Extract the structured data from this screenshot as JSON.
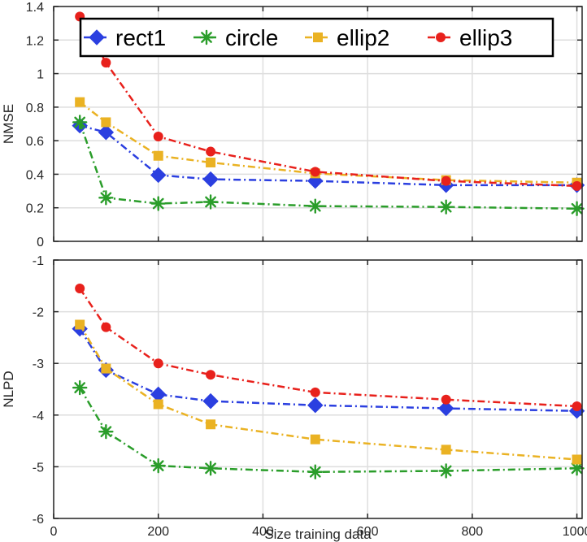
{
  "chart_data": [
    {
      "type": "line",
      "xlabel": "",
      "ylabel": "NMSE",
      "xlim": [
        0,
        1010
      ],
      "ylim": [
        0,
        1.4
      ],
      "xticks": [
        0,
        200,
        400,
        600,
        800,
        1000
      ],
      "yticks": [
        0,
        0.2,
        0.4,
        0.6,
        0.8,
        1,
        1.2,
        1.4
      ],
      "ytick_labels": [
        "0",
        "0.2",
        "0.4",
        "0.6",
        "0.8",
        "1",
        "1.2",
        "1.4"
      ],
      "show_xtick_labels": false,
      "grid": true,
      "legend_position": "top",
      "x": [
        50,
        100,
        200,
        300,
        500,
        750,
        1000
      ],
      "series": [
        {
          "name": "rect1",
          "color": "#2b3fe0",
          "marker": "diamond",
          "values": [
            0.69,
            0.65,
            0.395,
            0.37,
            0.36,
            0.335,
            0.335
          ]
        },
        {
          "name": "circle",
          "color": "#2a9d2a",
          "marker": "asterisk",
          "values": [
            0.71,
            0.26,
            0.225,
            0.235,
            0.21,
            0.205,
            0.195
          ]
        },
        {
          "name": "ellip2",
          "color": "#eab223",
          "marker": "square",
          "values": [
            0.83,
            0.71,
            0.51,
            0.47,
            0.405,
            0.365,
            0.35
          ]
        },
        {
          "name": "ellip3",
          "color": "#e8211c",
          "marker": "circle",
          "values": [
            1.34,
            1.065,
            0.625,
            0.535,
            0.415,
            0.36,
            0.33
          ]
        }
      ]
    },
    {
      "type": "line",
      "xlabel": "Size training data",
      "ylabel": "NLPD",
      "xlim": [
        0,
        1010
      ],
      "ylim": [
        -6,
        -1
      ],
      "xticks": [
        0,
        200,
        400,
        600,
        800,
        1000
      ],
      "yticks": [
        -6,
        -5,
        -4,
        -3,
        -2,
        -1
      ],
      "ytick_labels": [
        "-6",
        "-5",
        "-4",
        "-3",
        "-2",
        "-1"
      ],
      "show_xtick_labels": true,
      "grid": true,
      "x": [
        50,
        100,
        200,
        300,
        500,
        750,
        1000
      ],
      "series": [
        {
          "name": "rect1",
          "color": "#2b3fe0",
          "marker": "diamond",
          "values": [
            -2.33,
            -3.13,
            -3.6,
            -3.73,
            -3.81,
            -3.87,
            -3.92
          ]
        },
        {
          "name": "circle",
          "color": "#2a9d2a",
          "marker": "asterisk",
          "values": [
            -3.47,
            -4.32,
            -4.98,
            -5.03,
            -5.1,
            -5.08,
            -5.03
          ]
        },
        {
          "name": "ellip2",
          "color": "#eab223",
          "marker": "square",
          "values": [
            -2.25,
            -3.1,
            -3.79,
            -4.18,
            -4.47,
            -4.67,
            -4.86
          ]
        },
        {
          "name": "ellip3",
          "color": "#e8211c",
          "marker": "circle",
          "values": [
            -1.55,
            -2.3,
            -3.0,
            -3.22,
            -3.56,
            -3.7,
            -3.83
          ]
        }
      ]
    }
  ]
}
